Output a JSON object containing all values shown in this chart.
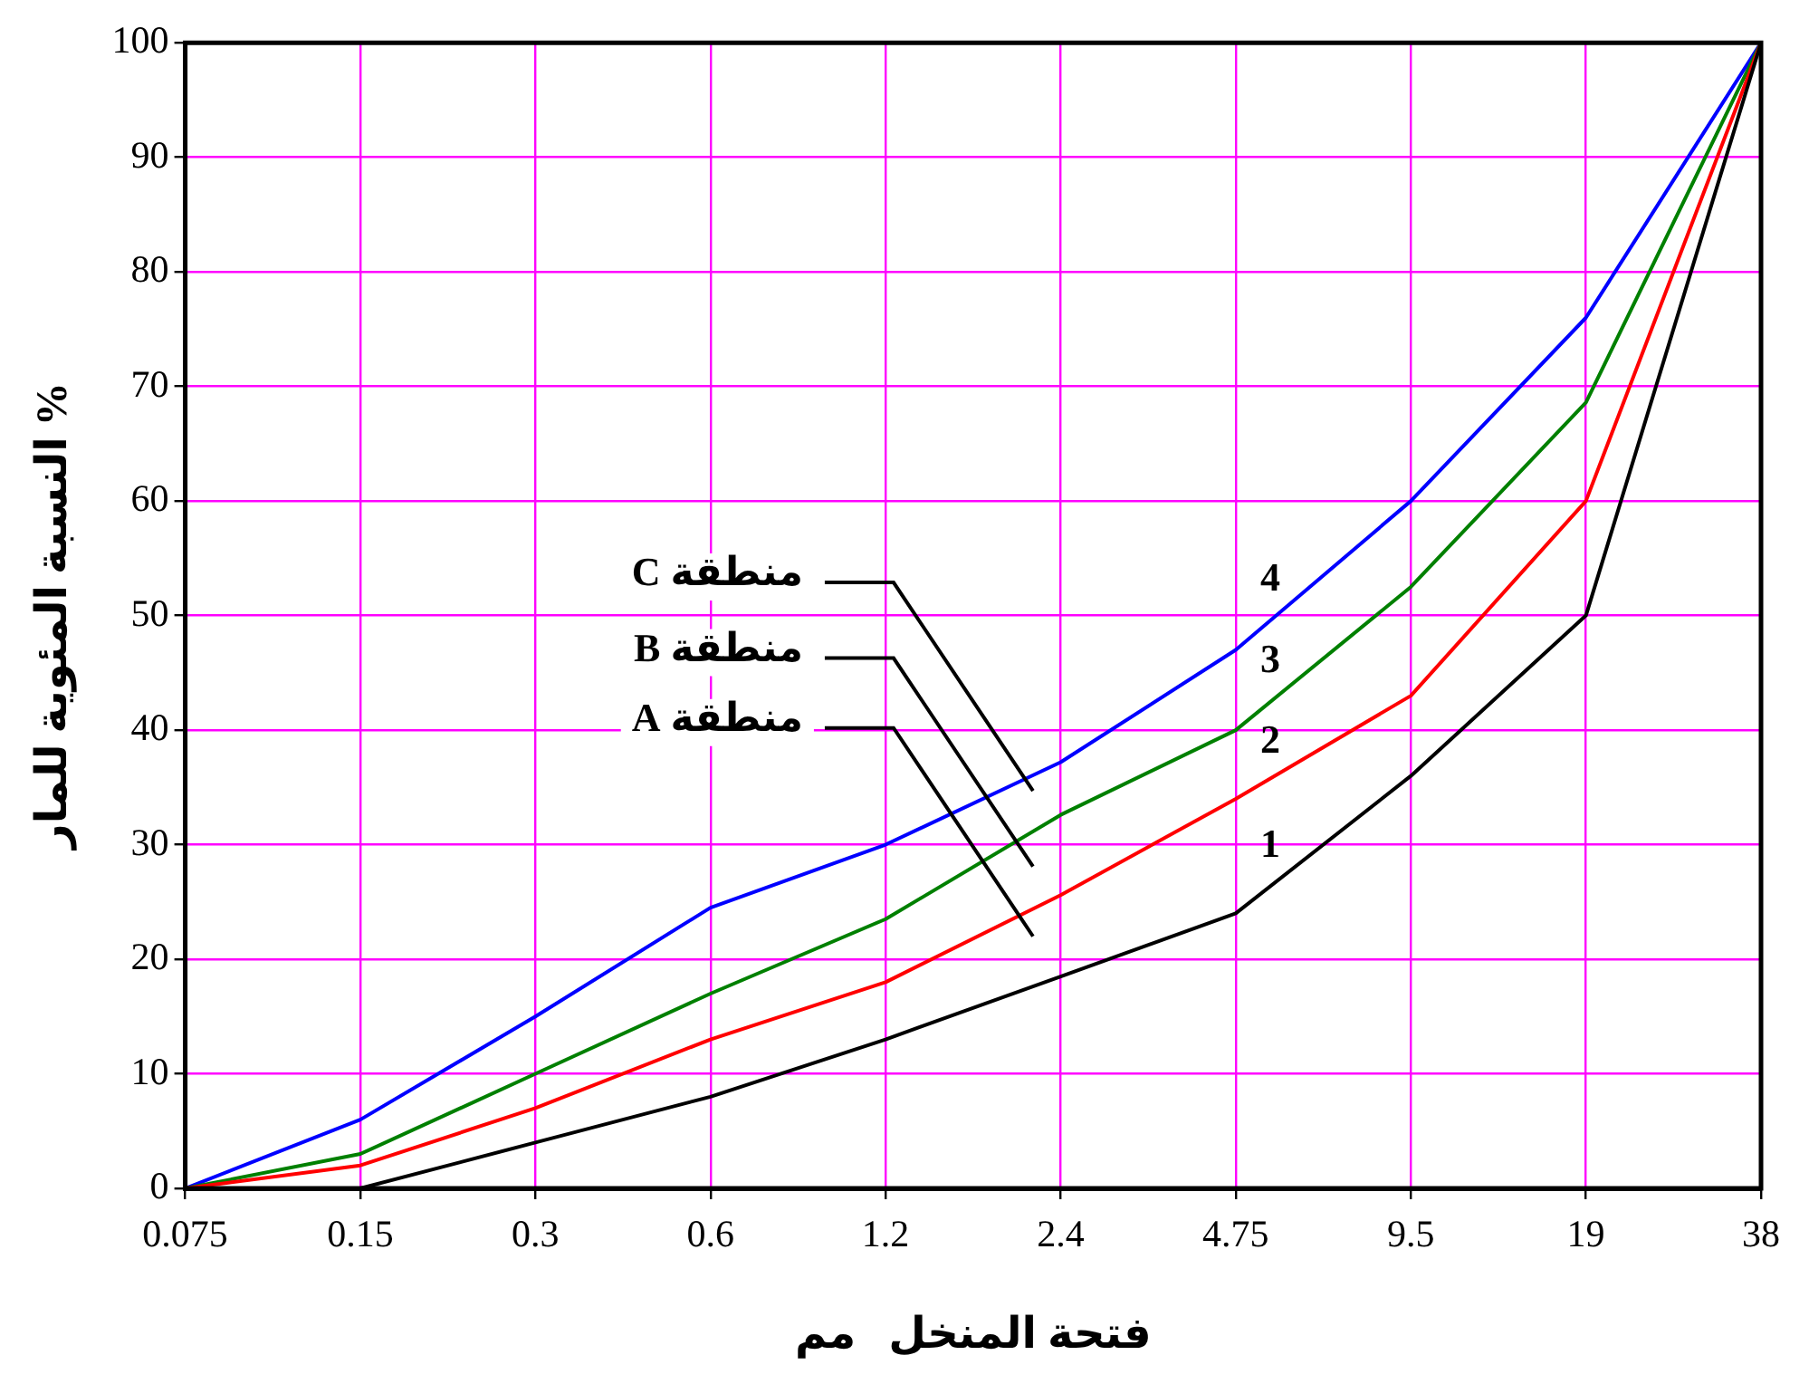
{
  "chart_data": {
    "type": "line",
    "xlabel": "فتحة المنخل   مم",
    "ylabel": "النسبة المئوية للمار %",
    "categories": [
      "0.075",
      "0.15",
      "0.3",
      "0.6",
      "1.2",
      "2.4",
      "4.75",
      "9.5",
      "19",
      "38"
    ],
    "series": [
      {
        "name": "1",
        "color": "#000000",
        "values": [
          null,
          0,
          4,
          8,
          13,
          18.5,
          24,
          36,
          50,
          100
        ]
      },
      {
        "name": "2",
        "color": "#ff0000",
        "values": [
          0,
          2,
          7,
          13,
          18,
          25.6,
          34,
          43,
          60,
          100
        ]
      },
      {
        "name": "3",
        "color": "#008000",
        "values": [
          0,
          3,
          10,
          17,
          23.5,
          32.6,
          40,
          52.5,
          68.6,
          100
        ]
      },
      {
        "name": "4",
        "color": "#0000ff",
        "values": [
          0,
          6,
          15,
          24.5,
          30,
          37.2,
          47,
          60,
          76,
          100
        ]
      }
    ],
    "ylim": [
      0,
      100
    ],
    "yticks": [
      0,
      10,
      20,
      30,
      40,
      50,
      60,
      70,
      80,
      90,
      100
    ],
    "grid": true,
    "legend": false,
    "marker": "none",
    "line_style": "solid",
    "annotations": [
      "منطقة C",
      "منطقة B",
      "منطقة A"
    ]
  }
}
